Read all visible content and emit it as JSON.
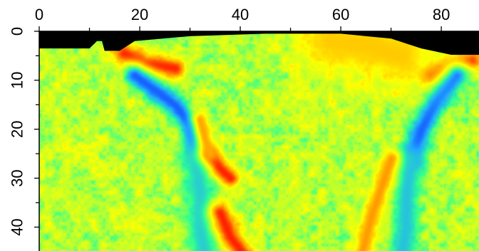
{
  "chart_data": {
    "type": "heatmap",
    "title": "",
    "xlabel": "",
    "ylabel": "",
    "xlim": [
      0,
      90
    ],
    "ylim": [
      0,
      45
    ],
    "y_axis_inverted": true,
    "x_axis_position": "top",
    "x_ticks": [
      "0",
      "20",
      "40",
      "60",
      "80"
    ],
    "y_ticks": [
      "0",
      "10",
      "20",
      "30",
      "40"
    ],
    "grid": false,
    "legend": "none",
    "colormap": [
      "#1020ff",
      "#20a8ff",
      "#30ff90",
      "#b8ff30",
      "#ffff00",
      "#ffa000",
      "#ff1000"
    ],
    "mask_color": "#000000",
    "background_value": 0.52,
    "top_surface": [
      {
        "x": 0,
        "depth": 3.5
      },
      {
        "x": 10,
        "depth": 3.5
      },
      {
        "x": 11.5,
        "depth": 2.0
      },
      {
        "x": 12.5,
        "depth": 2.0
      },
      {
        "x": 13,
        "depth": 4.0
      },
      {
        "x": 16,
        "depth": 4.0
      },
      {
        "x": 19,
        "depth": 2.0
      },
      {
        "x": 30,
        "depth": 1.0
      },
      {
        "x": 45,
        "depth": 0.5
      },
      {
        "x": 60,
        "depth": 0.5
      },
      {
        "x": 70,
        "depth": 1.5
      },
      {
        "x": 76,
        "depth": 3.5
      },
      {
        "x": 82,
        "depth": 4.8
      },
      {
        "x": 90,
        "depth": 4.8
      }
    ],
    "anomalies": [
      {
        "feature": "red",
        "value": 0.98,
        "width": 1.6,
        "path": [
          {
            "x": 17,
            "depth": 4.5
          },
          {
            "x": 21,
            "depth": 6.5
          },
          {
            "x": 27,
            "depth": 7.5
          }
        ]
      },
      {
        "feature": "blue",
        "value": 0.08,
        "width": 1.6,
        "path": [
          {
            "x": 19,
            "depth": 9
          },
          {
            "x": 23,
            "depth": 12
          },
          {
            "x": 27,
            "depth": 15
          },
          {
            "x": 30,
            "depth": 19
          },
          {
            "x": 31,
            "depth": 24
          }
        ]
      },
      {
        "feature": "cyan",
        "value": 0.24,
        "width": 2.2,
        "path": [
          {
            "x": 31,
            "depth": 26
          },
          {
            "x": 32,
            "depth": 33
          },
          {
            "x": 32,
            "depth": 40
          },
          {
            "x": 33,
            "depth": 46
          }
        ]
      },
      {
        "feature": "red",
        "value": 0.98,
        "width": 1.4,
        "path": [
          {
            "x": 34,
            "depth": 25
          },
          {
            "x": 36,
            "depth": 28
          },
          {
            "x": 38,
            "depth": 30
          }
        ]
      },
      {
        "feature": "orange",
        "value": 0.82,
        "width": 1.2,
        "path": [
          {
            "x": 32,
            "depth": 18
          },
          {
            "x": 33,
            "depth": 22
          },
          {
            "x": 34,
            "depth": 25
          }
        ]
      },
      {
        "feature": "red",
        "value": 0.98,
        "width": 1.6,
        "path": [
          {
            "x": 36,
            "depth": 37
          },
          {
            "x": 38,
            "depth": 42
          },
          {
            "x": 41,
            "depth": 46
          }
        ]
      },
      {
        "feature": "red",
        "value": 0.98,
        "width": 1.6,
        "path": [
          {
            "x": 78,
            "depth": 9
          },
          {
            "x": 82,
            "depth": 7
          },
          {
            "x": 86,
            "depth": 6
          }
        ]
      },
      {
        "feature": "blue",
        "value": 0.08,
        "width": 1.8,
        "path": [
          {
            "x": 83,
            "depth": 9
          },
          {
            "x": 79,
            "depth": 14
          },
          {
            "x": 76,
            "depth": 20
          },
          {
            "x": 74,
            "depth": 26
          }
        ]
      },
      {
        "feature": "cyan",
        "value": 0.22,
        "width": 2.0,
        "path": [
          {
            "x": 74,
            "depth": 26
          },
          {
            "x": 73,
            "depth": 33
          },
          {
            "x": 73,
            "depth": 40
          },
          {
            "x": 72,
            "depth": 46
          }
        ]
      },
      {
        "feature": "orange",
        "value": 0.84,
        "width": 1.4,
        "path": [
          {
            "x": 70,
            "depth": 26
          },
          {
            "x": 68,
            "depth": 32
          },
          {
            "x": 66,
            "depth": 38
          },
          {
            "x": 64,
            "depth": 46
          }
        ]
      },
      {
        "feature": "orange",
        "value": 0.76,
        "width": 5.0,
        "path": [
          {
            "x": 58,
            "depth": 2
          },
          {
            "x": 66,
            "depth": 3
          },
          {
            "x": 72,
            "depth": 5
          }
        ]
      }
    ]
  }
}
